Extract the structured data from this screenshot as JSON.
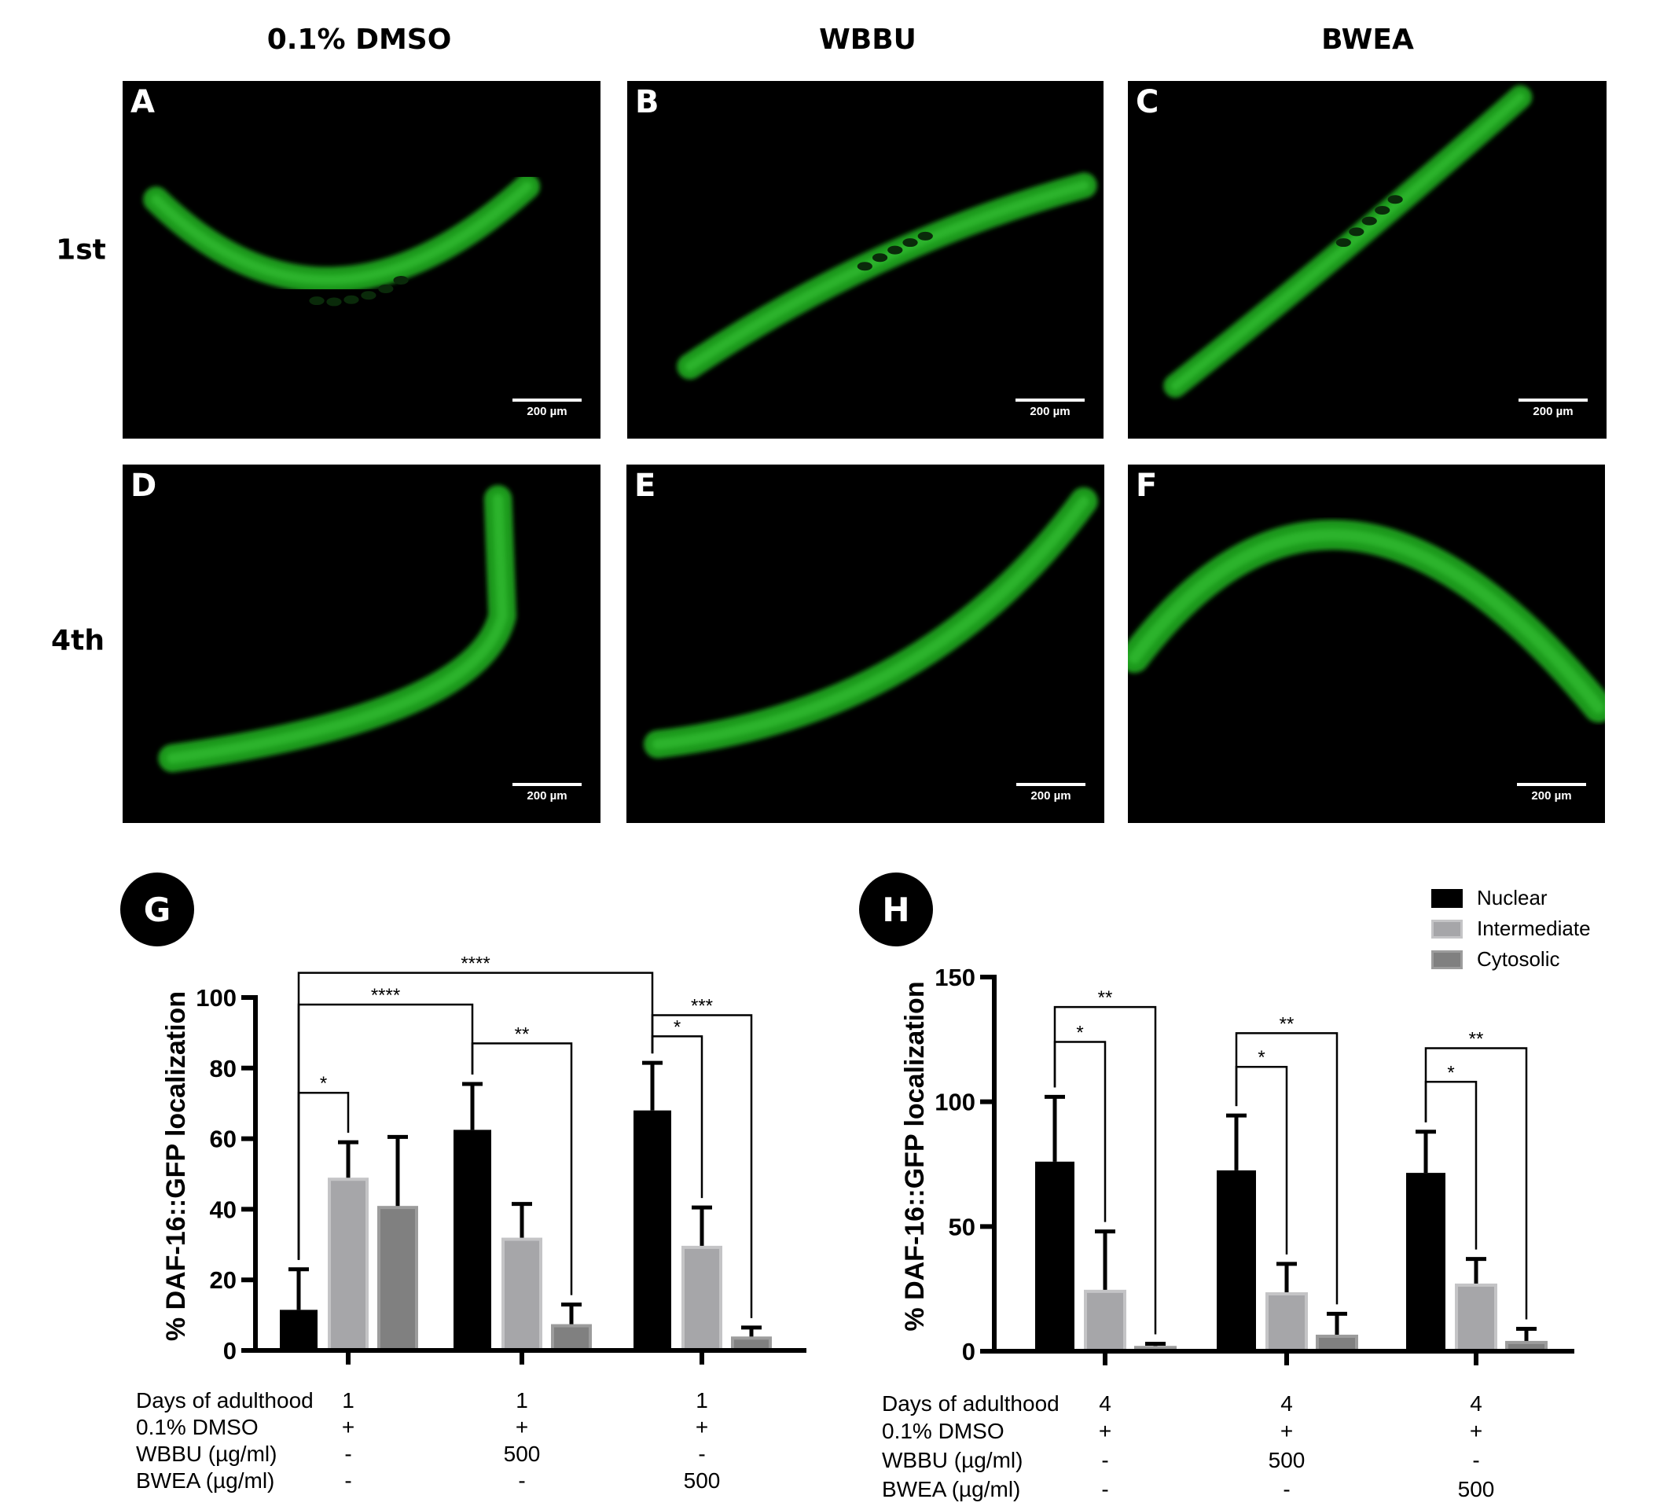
{
  "columns": [
    "0.1% DMSO",
    "WBBU",
    "BWEA"
  ],
  "rows": [
    "1st",
    "4th"
  ],
  "panels": [
    {
      "letter": "A",
      "scale": "200 µm"
    },
    {
      "letter": "B",
      "scale": "200 µm"
    },
    {
      "letter": "C",
      "scale": "200 µm"
    },
    {
      "letter": "D",
      "scale": "200 µm"
    },
    {
      "letter": "E",
      "scale": "200 µm"
    },
    {
      "letter": "F",
      "scale": "200 µm"
    }
  ],
  "legend": [
    {
      "label": "Nuclear",
      "color": "#000000"
    },
    {
      "label": "Intermediate",
      "color": "#a6a6a9"
    },
    {
      "label": "Cytosolic",
      "color": "#808080"
    }
  ],
  "chart_data": [
    {
      "panel": "G",
      "type": "bar",
      "ylabel": "% DAF-16::GFP localization",
      "ylim": [
        0,
        100
      ],
      "yticks": [
        "0",
        "20",
        "40",
        "60",
        "80",
        "100"
      ],
      "ytick_values": [
        0,
        20,
        40,
        60,
        80,
        100
      ],
      "series": [
        {
          "name": "Nuclear",
          "values": [
            11.5,
            62.5,
            68
          ],
          "err_top": [
            23,
            75.5,
            81.5
          ]
        },
        {
          "name": "Intermediate",
          "values": [
            48.5,
            31.5,
            29.2
          ],
          "err_top": [
            59,
            41.5,
            40.5
          ]
        },
        {
          "name": "Cytosolic",
          "values": [
            40.5,
            7,
            3.5
          ],
          "err_top": [
            60.5,
            13,
            6.5
          ]
        }
      ],
      "significance": [
        {
          "label": "*",
          "from": [
            0,
            0
          ],
          "to": [
            0,
            1
          ],
          "level": 73
        },
        {
          "label": "****",
          "from": [
            0,
            0
          ],
          "to": [
            1,
            0
          ],
          "level": 98
        },
        {
          "label": "****",
          "from": [
            0,
            0
          ],
          "to": [
            2,
            0
          ],
          "level": 107
        },
        {
          "label": "**",
          "from": [
            1,
            0
          ],
          "to": [
            1,
            2
          ],
          "level": 87
        },
        {
          "label": "*",
          "from": [
            2,
            0
          ],
          "to": [
            2,
            1
          ],
          "level": 89
        },
        {
          "label": "***",
          "from": [
            2,
            0
          ],
          "to": [
            2,
            2
          ],
          "level": 95
        }
      ],
      "conditions": {
        "labels": [
          "Days of adulthood",
          "0.1% DMSO",
          "WBBU (µg/ml)",
          "BWEA (µg/ml)"
        ],
        "groups": [
          [
            "1",
            "+",
            "-",
            "-"
          ],
          [
            "1",
            "+",
            "500",
            "-"
          ],
          [
            "1",
            "+",
            "-",
            "500"
          ]
        ]
      }
    },
    {
      "panel": "H",
      "type": "bar",
      "ylabel": "% DAF-16::GFP localization",
      "ylim": [
        0,
        150
      ],
      "yticks": [
        "0",
        "50",
        "100",
        "150"
      ],
      "ytick_values": [
        0,
        50,
        100,
        150
      ],
      "series": [
        {
          "name": "Nuclear",
          "values": [
            76,
            72.5,
            71.5
          ],
          "err_top": [
            102,
            94.5,
            88
          ]
        },
        {
          "name": "Intermediate",
          "values": [
            24,
            23,
            26.5
          ],
          "err_top": [
            48,
            35,
            37
          ]
        },
        {
          "name": "Cytosolic",
          "values": [
            1.5,
            6,
            3.5
          ],
          "err_top": [
            3,
            15,
            9
          ]
        }
      ],
      "significance": [
        {
          "label": "*",
          "from": [
            0,
            0
          ],
          "to": [
            0,
            1
          ],
          "level": 124
        },
        {
          "label": "**",
          "from": [
            0,
            0
          ],
          "to": [
            0,
            2
          ],
          "level": 138
        },
        {
          "label": "*",
          "from": [
            1,
            0
          ],
          "to": [
            1,
            1
          ],
          "level": 114
        },
        {
          "label": "**",
          "from": [
            1,
            0
          ],
          "to": [
            1,
            2
          ],
          "level": 127.5
        },
        {
          "label": "*",
          "from": [
            2,
            0
          ],
          "to": [
            2,
            1
          ],
          "level": 108
        },
        {
          "label": "**",
          "from": [
            2,
            0
          ],
          "to": [
            2,
            2
          ],
          "level": 121.5
        }
      ],
      "conditions": {
        "labels": [
          "Days of adulthood",
          "0.1% DMSO",
          "WBBU (µg/ml)",
          "BWEA (µg/ml)"
        ],
        "groups": [
          [
            "4",
            "+",
            "-",
            "-"
          ],
          [
            "4",
            "+",
            "500",
            "-"
          ],
          [
            "4",
            "+",
            "-",
            "500"
          ]
        ]
      }
    }
  ]
}
